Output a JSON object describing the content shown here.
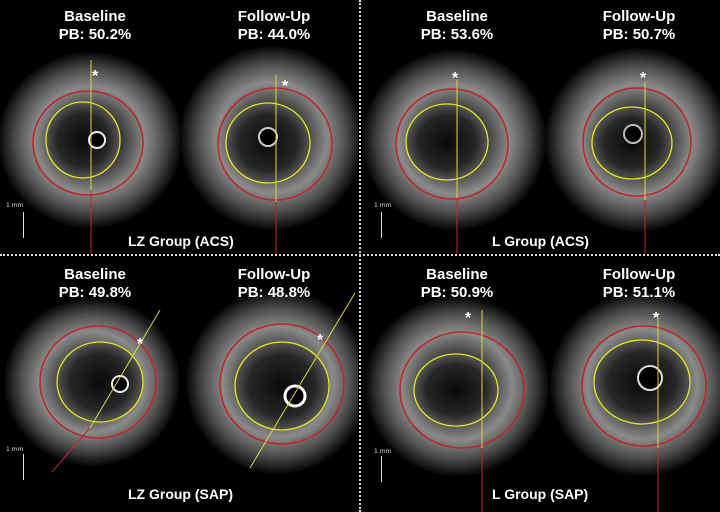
{
  "panels": [
    {
      "id": "lz-acs",
      "group": "LZ Group (ACS)",
      "left": {
        "title": "Baseline",
        "pb": "PB: 50.2%"
      },
      "right": {
        "title": "Follow-Up",
        "pb": "PB: 44.0%"
      },
      "scale": "1 mm"
    },
    {
      "id": "l-acs",
      "group": "L Group (ACS)",
      "left": {
        "title": "Baseline",
        "pb": "PB: 53.6%"
      },
      "right": {
        "title": "Follow-Up",
        "pb": "PB: 50.7%"
      },
      "scale": "1 mm"
    },
    {
      "id": "lz-sap",
      "group": "LZ Group (SAP)",
      "left": {
        "title": "Baseline",
        "pb": "PB: 49.8%"
      },
      "right": {
        "title": "Follow-Up",
        "pb": "PB: 48.8%"
      },
      "scale": "1 mm"
    },
    {
      "id": "l-sap",
      "group": "L Group (SAP)",
      "left": {
        "title": "Baseline",
        "pb": "PB: 50.9%"
      },
      "right": {
        "title": "Follow-Up",
        "pb": "PB: 51.1%"
      },
      "scale": "1 mm"
    }
  ],
  "marker": "*",
  "colors": {
    "eem": "#c0272d",
    "lumen": "#e6e61e",
    "line_yellow": "#d8d83a",
    "line_red": "#c0272d"
  }
}
